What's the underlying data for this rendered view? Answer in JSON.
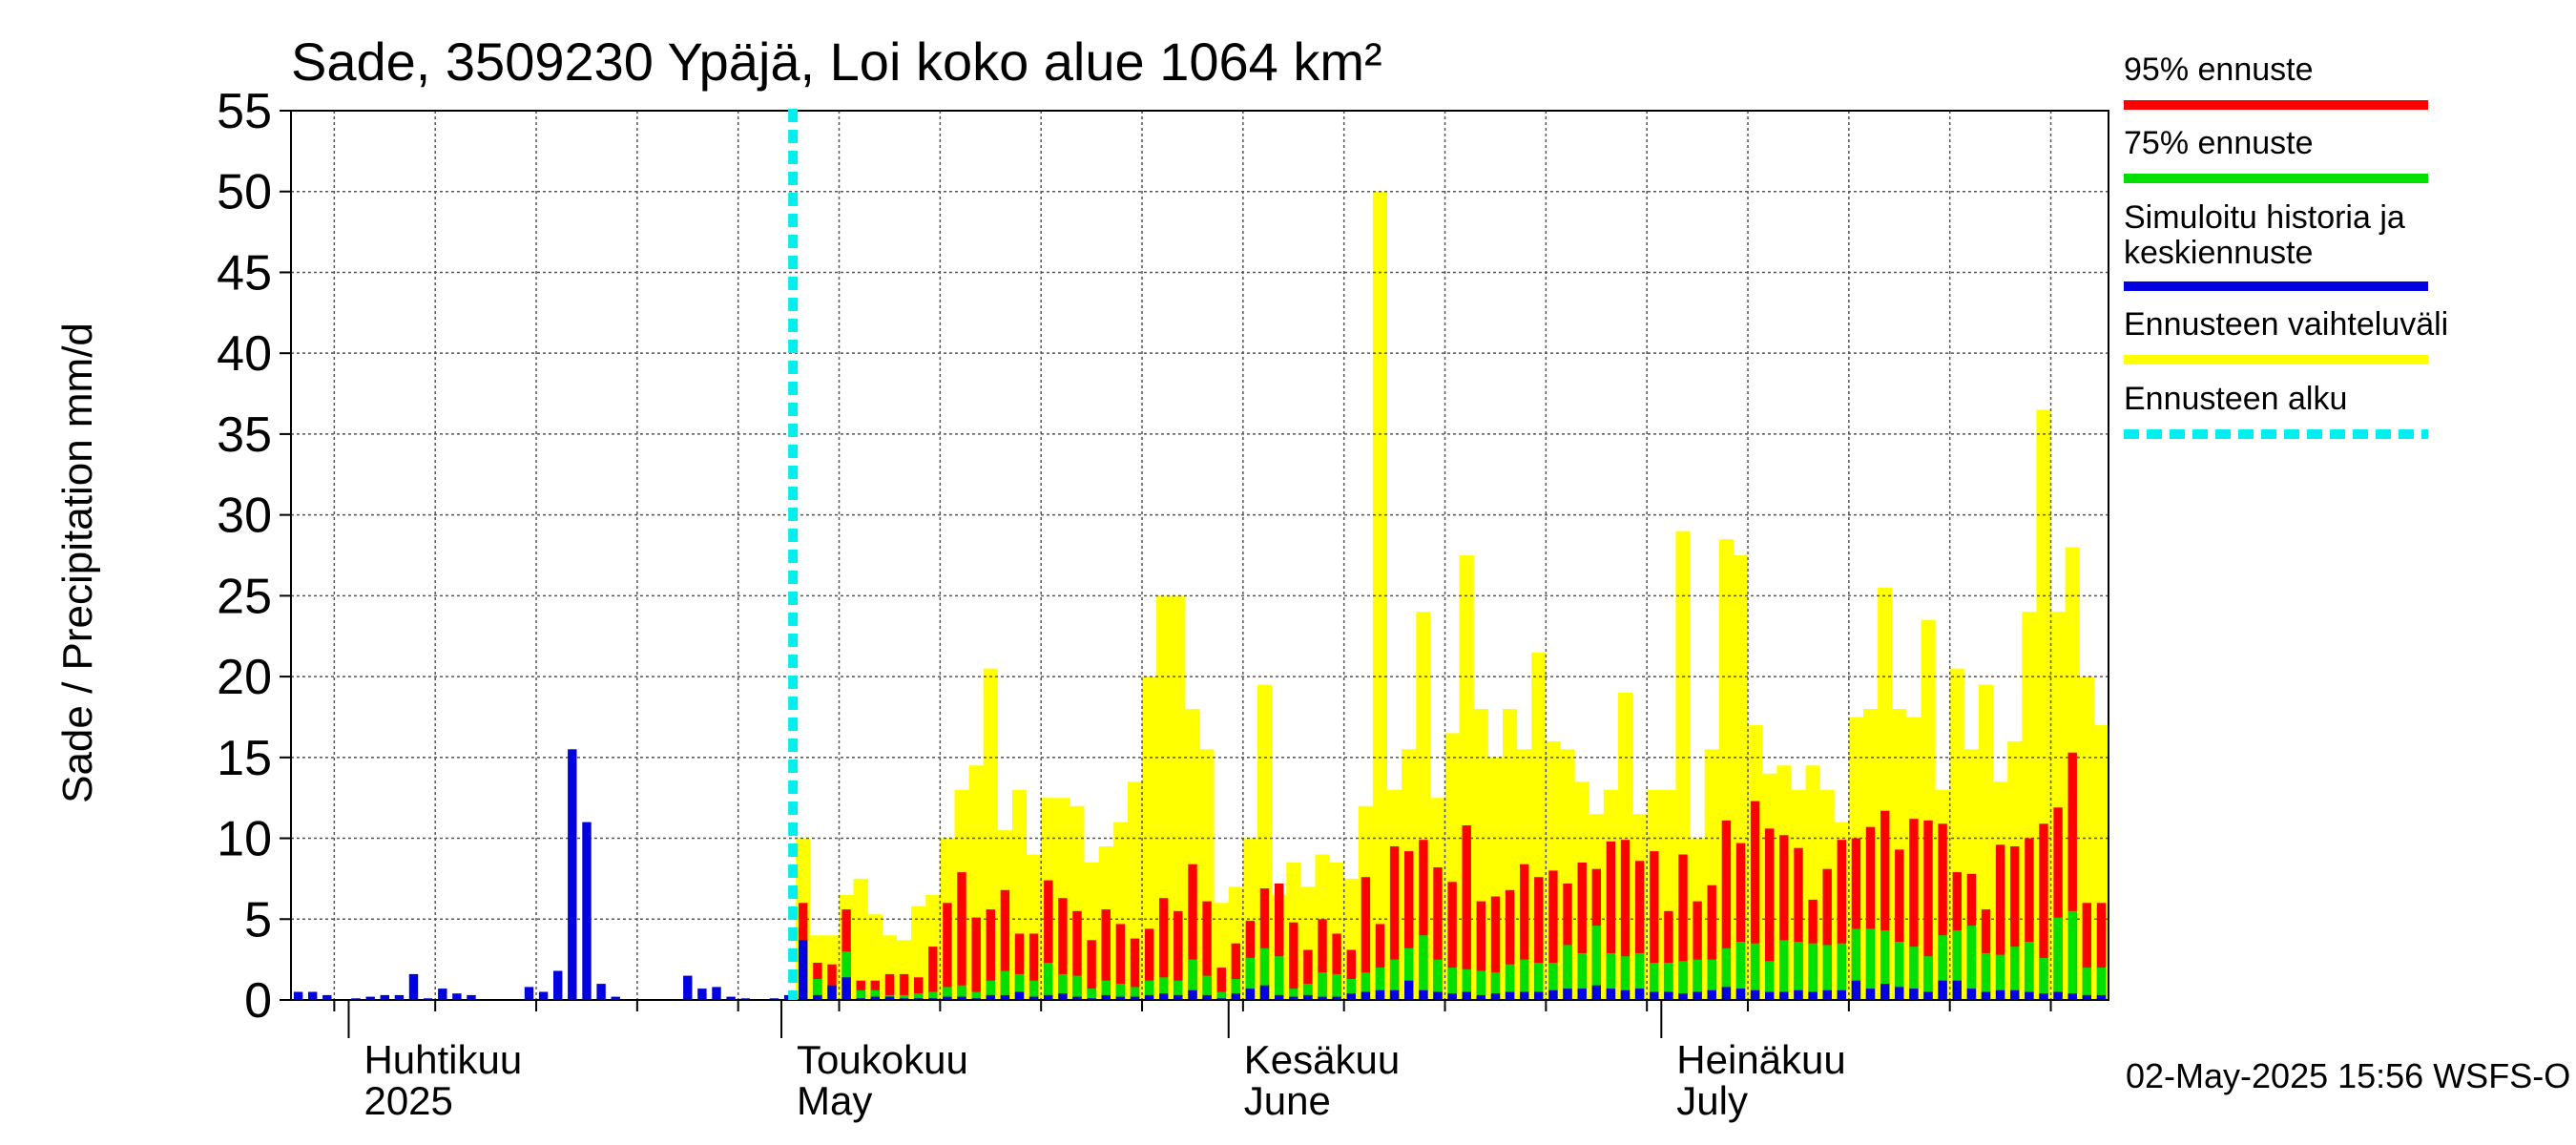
{
  "title": "Sade, 3509230 Ypäjä, Loi koko alue 1064 km²",
  "ylabel": "Sade / Precipitation   mm/d",
  "footer": "02-May-2025 15:56 WSFS-O",
  "legend": [
    {
      "label": "95% ennuste",
      "color": "#ff0000",
      "style": "solid"
    },
    {
      "label": "75% ennuste",
      "color": "#00e000",
      "style": "solid"
    },
    {
      "label": "Simuloitu historia ja\nkeskiennuste",
      "color": "#0000e0",
      "style": "solid"
    },
    {
      "label": "Ennusteen vaihteluväli",
      "color": "#ffff00",
      "style": "solid"
    },
    {
      "label": "Ennusteen alku",
      "color": "#00eeee",
      "style": "dashed"
    }
  ],
  "chart_data": {
    "type": "bar",
    "title": "Sade, 3509230 Ypäjä, Loi koko alue 1064 km²",
    "ylabel": "Sade / Precipitation   mm/d",
    "ylim": [
      0,
      55
    ],
    "yticks": [
      "0",
      "5",
      "10",
      "15",
      "20",
      "25",
      "30",
      "35",
      "40",
      "45",
      "50",
      "55"
    ],
    "x_start": "2025-03-28",
    "x_end": "2025-08-01",
    "forecast_start": "2025-05-02",
    "grid": true,
    "months": [
      {
        "date": "2025-04-01",
        "line1": "Huhtikuu",
        "line2": "2025"
      },
      {
        "date": "2025-05-01",
        "line1": "Toukokuu",
        "line2": "May"
      },
      {
        "date": "2025-06-01",
        "line1": "Kesäkuu",
        "line2": "June"
      },
      {
        "date": "2025-07-01",
        "line1": "Heinäkuu",
        "line2": "July"
      }
    ],
    "history": [
      {
        "date": "2025-03-28",
        "value": 0.5
      },
      {
        "date": "2025-03-29",
        "value": 0.5
      },
      {
        "date": "2025-03-30",
        "value": 0.3
      },
      {
        "date": "2025-04-01",
        "value": 0.1
      },
      {
        "date": "2025-04-02",
        "value": 0.2
      },
      {
        "date": "2025-04-03",
        "value": 0.3
      },
      {
        "date": "2025-04-04",
        "value": 0.3
      },
      {
        "date": "2025-04-05",
        "value": 1.6
      },
      {
        "date": "2025-04-06",
        "value": 0.1
      },
      {
        "date": "2025-04-07",
        "value": 0.7
      },
      {
        "date": "2025-04-08",
        "value": 0.4
      },
      {
        "date": "2025-04-09",
        "value": 0.3
      },
      {
        "date": "2025-04-13",
        "value": 0.8
      },
      {
        "date": "2025-04-14",
        "value": 0.5
      },
      {
        "date": "2025-04-15",
        "value": 1.8
      },
      {
        "date": "2025-04-16",
        "value": 15.5
      },
      {
        "date": "2025-04-17",
        "value": 11.0
      },
      {
        "date": "2025-04-18",
        "value": 1.0
      },
      {
        "date": "2025-04-19",
        "value": 0.2
      },
      {
        "date": "2025-04-24",
        "value": 1.5
      },
      {
        "date": "2025-04-25",
        "value": 0.7
      },
      {
        "date": "2025-04-26",
        "value": 0.8
      },
      {
        "date": "2025-04-27",
        "value": 0.2
      },
      {
        "date": "2025-04-28",
        "value": 0.1
      },
      {
        "date": "2025-04-30",
        "value": 0.1
      },
      {
        "date": "2025-05-01",
        "value": 0.3
      }
    ],
    "forecast": {
      "dates": [
        "2025-05-02",
        "2025-05-03",
        "2025-05-04",
        "2025-05-05",
        "2025-05-06",
        "2025-05-07",
        "2025-05-08",
        "2025-05-09",
        "2025-05-10",
        "2025-05-11",
        "2025-05-12",
        "2025-05-13",
        "2025-05-14",
        "2025-05-15",
        "2025-05-16",
        "2025-05-17",
        "2025-05-18",
        "2025-05-19",
        "2025-05-20",
        "2025-05-21",
        "2025-05-22",
        "2025-05-23",
        "2025-05-24",
        "2025-05-25",
        "2025-05-26",
        "2025-05-27",
        "2025-05-28",
        "2025-05-29",
        "2025-05-30",
        "2025-05-31",
        "2025-06-01",
        "2025-06-02",
        "2025-06-03",
        "2025-06-04",
        "2025-06-05",
        "2025-06-06",
        "2025-06-07",
        "2025-06-08",
        "2025-06-09",
        "2025-06-10",
        "2025-06-11",
        "2025-06-12",
        "2025-06-13",
        "2025-06-14",
        "2025-06-15",
        "2025-06-16",
        "2025-06-17",
        "2025-06-18",
        "2025-06-19",
        "2025-06-20",
        "2025-06-21",
        "2025-06-22",
        "2025-06-23",
        "2025-06-24",
        "2025-06-25",
        "2025-06-26",
        "2025-06-27",
        "2025-06-28",
        "2025-06-29",
        "2025-06-30",
        "2025-07-01",
        "2025-07-02",
        "2025-07-03",
        "2025-07-04",
        "2025-07-05",
        "2025-07-06",
        "2025-07-07",
        "2025-07-08",
        "2025-07-09",
        "2025-07-10",
        "2025-07-11",
        "2025-07-12",
        "2025-07-13",
        "2025-07-14",
        "2025-07-15",
        "2025-07-16",
        "2025-07-17",
        "2025-07-18",
        "2025-07-19",
        "2025-07-20",
        "2025-07-21",
        "2025-07-22",
        "2025-07-23",
        "2025-07-24",
        "2025-07-25",
        "2025-07-26",
        "2025-07-27",
        "2025-07-28",
        "2025-07-29",
        "2025-07-30",
        "2025-07-31"
      ],
      "p95": [
        6,
        2.3,
        2.2,
        5.6,
        1.2,
        1.2,
        1.6,
        1.6,
        1.4,
        3.3,
        6,
        7.9,
        5.1,
        5.6,
        6.8,
        4.1,
        4.1,
        7.4,
        6.3,
        5.5,
        3.7,
        5.6,
        4.7,
        3.8,
        4.4,
        6.3,
        5.5,
        8.4,
        6.1,
        2,
        3.5,
        4.9,
        6.9,
        7.2,
        4.8,
        3.1,
        5,
        4.1,
        3.1,
        7.6,
        4.7,
        9.5,
        9.2,
        9.9,
        8.2,
        7.3,
        10.8,
        6.1,
        6.4,
        6.8,
        8.4,
        7.6,
        8,
        7.2,
        8.5,
        8.1,
        9.8,
        9.9,
        8.6,
        9.2,
        5.5,
        9,
        6.1,
        7.1,
        11.1,
        9.7,
        12.3,
        10.6,
        10.2,
        9.4,
        6.2,
        8.1,
        9.9,
        10,
        10.7,
        11.7,
        9.3,
        11.2,
        11.1,
        10.9,
        7.9,
        7.8,
        5.6,
        9.6,
        9.5,
        10,
        10.9,
        11.9,
        15.3,
        6,
        6
      ],
      "p75": [
        3,
        1.3,
        0.9,
        3,
        0.6,
        0.6,
        0.3,
        0.3,
        0.4,
        0.5,
        0.8,
        0.9,
        0.5,
        1.2,
        1.8,
        1.6,
        1.2,
        2.3,
        1.6,
        1.5,
        0.7,
        1.2,
        1,
        0.8,
        1.2,
        1.4,
        1.2,
        2.5,
        1.5,
        0.5,
        1.3,
        2.6,
        3.2,
        2.7,
        0.7,
        1,
        1.7,
        1.6,
        1.3,
        1.7,
        2,
        2.5,
        3.2,
        4,
        2.5,
        2,
        1.9,
        1.8,
        1.7,
        2.2,
        2.5,
        2.3,
        2.3,
        3.4,
        2.9,
        4.6,
        2.9,
        2.7,
        2.9,
        2.3,
        2.3,
        2.4,
        2.5,
        2.5,
        3.2,
        3.6,
        3.5,
        2.4,
        3.7,
        3.6,
        3.5,
        3.4,
        3.5,
        4.4,
        4.4,
        4.3,
        3.6,
        3.3,
        2.7,
        4,
        4.3,
        4.6,
        2.9,
        2.8,
        3.3,
        3.6,
        2.6,
        5.1,
        5.5,
        2,
        2
      ],
      "median": [
        3.7,
        0.3,
        0.9,
        1.4,
        0.1,
        0.2,
        0.2,
        0.1,
        0.1,
        0.1,
        0.2,
        0.2,
        0.1,
        0.3,
        0.3,
        0.5,
        0.2,
        0.3,
        0.4,
        0.2,
        0.1,
        0.3,
        0.2,
        0.2,
        0.3,
        0.4,
        0.3,
        0.6,
        0.3,
        0.1,
        0.4,
        0.7,
        0.9,
        0.3,
        0.2,
        0.3,
        0.2,
        0.2,
        0.4,
        0.5,
        0.6,
        0.6,
        1.2,
        0.6,
        0.5,
        0.4,
        0.5,
        0.3,
        0.4,
        0.5,
        0.5,
        0.5,
        0.6,
        0.7,
        0.7,
        0.9,
        0.7,
        0.6,
        0.7,
        0.5,
        0.5,
        0.4,
        0.5,
        0.6,
        0.8,
        0.7,
        0.6,
        0.5,
        0.5,
        0.6,
        0.5,
        0.6,
        0.6,
        1.2,
        0.7,
        1,
        0.8,
        0.7,
        0.5,
        1.2,
        1.2,
        0.7,
        0.5,
        0.6,
        0.6,
        0.5,
        0.4,
        0.5,
        0.4,
        0.3,
        0.3
      ],
      "range_max": [
        10,
        4,
        4,
        6.5,
        7.5,
        5.3,
        4,
        3.7,
        5.8,
        6.5,
        10,
        13,
        14.5,
        20.5,
        10.5,
        13,
        9,
        12.5,
        12.5,
        12,
        8.5,
        9.5,
        11,
        13.5,
        20,
        25,
        25,
        18,
        15.5,
        6,
        7,
        10,
        19.5,
        6.5,
        8.5,
        7,
        9,
        8.5,
        7.5,
        12,
        50,
        13,
        15.5,
        24,
        12.5,
        16.5,
        27.5,
        18,
        15,
        18,
        15.5,
        21.5,
        16,
        15.5,
        13.5,
        11.5,
        13,
        19,
        11.5,
        13,
        13,
        29,
        10,
        15.5,
        28.5,
        27.5,
        17,
        14,
        14.5,
        13,
        14.5,
        13,
        11,
        17.5,
        18,
        25.5,
        18,
        17.5,
        23.5,
        13,
        20.5,
        15.5,
        19.5,
        13.5,
        16,
        24,
        36.5,
        24,
        28,
        20,
        17
      ]
    }
  }
}
